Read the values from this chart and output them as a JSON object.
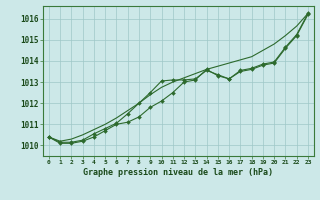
{
  "title": "Graphe pression niveau de la mer (hPa)",
  "x_labels": [
    "0",
    "1",
    "2",
    "3",
    "4",
    "5",
    "6",
    "7",
    "8",
    "9",
    "10",
    "11",
    "12",
    "13",
    "14",
    "15",
    "16",
    "17",
    "18",
    "19",
    "20",
    "21",
    "22",
    "23"
  ],
  "line1": [
    1010.4,
    1010.1,
    1010.1,
    1010.2,
    1010.4,
    1010.7,
    1011.0,
    1011.1,
    1011.35,
    1011.8,
    1012.1,
    1012.5,
    1013.0,
    1013.1,
    1013.6,
    1013.3,
    1013.15,
    1013.5,
    1013.6,
    1013.8,
    1013.9,
    1014.6,
    1015.2,
    1016.2
  ],
  "line2": [
    1010.4,
    1010.15,
    1010.15,
    1010.25,
    1010.55,
    1010.8,
    1011.05,
    1011.5,
    1012.0,
    1012.5,
    1013.05,
    1013.1,
    1013.1,
    1013.15,
    1013.55,
    1013.35,
    1013.15,
    1013.55,
    1013.65,
    1013.85,
    1013.95,
    1014.65,
    1015.25,
    1016.25
  ],
  "line3": [
    1010.4,
    1010.2,
    1010.3,
    1010.5,
    1010.75,
    1011.0,
    1011.3,
    1011.65,
    1012.0,
    1012.4,
    1012.75,
    1013.0,
    1013.2,
    1013.4,
    1013.6,
    1013.75,
    1013.9,
    1014.05,
    1014.2,
    1014.5,
    1014.8,
    1015.2,
    1015.65,
    1016.25
  ],
  "line_color": "#2d6a2d",
  "bg_color": "#cce8e8",
  "grid_color": "#9fc8c8",
  "ylim": [
    1009.5,
    1016.6
  ],
  "yticks": [
    1010,
    1011,
    1012,
    1013,
    1014,
    1015,
    1016
  ],
  "marker": "D",
  "marker_size": 2.0,
  "linewidth": 0.8
}
